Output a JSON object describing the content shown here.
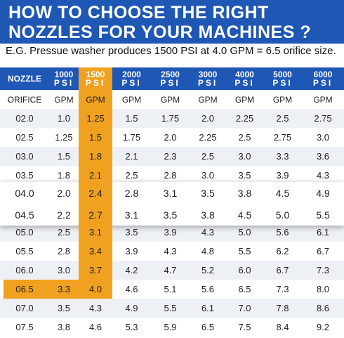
{
  "title": [
    "HOW TO CHOOSE THE RIGHT",
    "NOZZLES FOR YOUR MACHINES ?"
  ],
  "subtitle": "E.G. Pressue washer produces 1500 PSI at 4.0 GPM = 6.5 orifice size.",
  "table": {
    "header": [
      "NOZZLE",
      {
        "pressure": "1000",
        "unit": "PSI"
      },
      {
        "pressure": "1500",
        "unit": "PSI"
      },
      {
        "pressure": "2000",
        "unit": "PSI"
      },
      {
        "pressure": "2500",
        "unit": "PSI"
      },
      {
        "pressure": "3000",
        "unit": "PSI"
      },
      {
        "pressure": "4000",
        "unit": "PSI"
      },
      {
        "pressure": "5000",
        "unit": "PSI"
      },
      {
        "pressure": "6000",
        "unit": "PSI"
      }
    ],
    "subheader": [
      "ORIFICE",
      "GPM",
      "GPM",
      "GPM",
      "GPM",
      "GPM",
      "GPM",
      "GPM",
      "GPM"
    ],
    "rows": [
      [
        "02.0",
        "1.0",
        "1.25",
        "1.5",
        "1.75",
        "2.0",
        "2.25",
        "2.5",
        "2.75"
      ],
      [
        "02.5",
        "1.25",
        "1.5",
        "1.75",
        "2.0",
        "2.25",
        "2.5",
        "2.75",
        "3.0"
      ],
      [
        "03.0",
        "1.5",
        "1.8",
        "2.1",
        "2.3",
        "2.5",
        "3.0",
        "3.3",
        "3.6"
      ],
      [
        "03.5",
        "1.8",
        "2.1",
        "2.5",
        "2.8",
        "3.0",
        "3.5",
        "3.9",
        "4.3"
      ],
      [
        "04.0",
        "2.0",
        "2.4",
        "2.8",
        "3.1",
        "3.5",
        "3.8",
        "4.5",
        "4.9"
      ],
      [
        "04.5",
        "2.2",
        "2.7",
        "3.1",
        "3.5",
        "3.8",
        "4.5",
        "5.0",
        "5.5"
      ],
      [
        "05.0",
        "2.5",
        "3.1",
        "3.5",
        "3.9",
        "4.3",
        "5.0",
        "5.6",
        "6.1"
      ],
      [
        "05.5",
        "2.8",
        "3.4",
        "3.9",
        "4.3",
        "4.8",
        "5.5",
        "6.2",
        "6.7"
      ],
      [
        "06.0",
        "3.0",
        "3.7",
        "4.2",
        "4.7",
        "5.2",
        "6.0",
        "6.7",
        "7.3"
      ],
      [
        "06.5",
        "3.3",
        "4.0",
        "4.6",
        "5.1",
        "5.6",
        "6.5",
        "7.3",
        "8.0"
      ],
      [
        "07.0",
        "3.5",
        "4.3",
        "4.9",
        "5.5",
        "6.1",
        "7.0",
        "7.8",
        "8.6"
      ],
      [
        "07.5",
        "3.8",
        "4.6",
        "5.3",
        "5.9",
        "6.5",
        "7.5",
        "8.4",
        "9.2"
      ]
    ]
  }
}
